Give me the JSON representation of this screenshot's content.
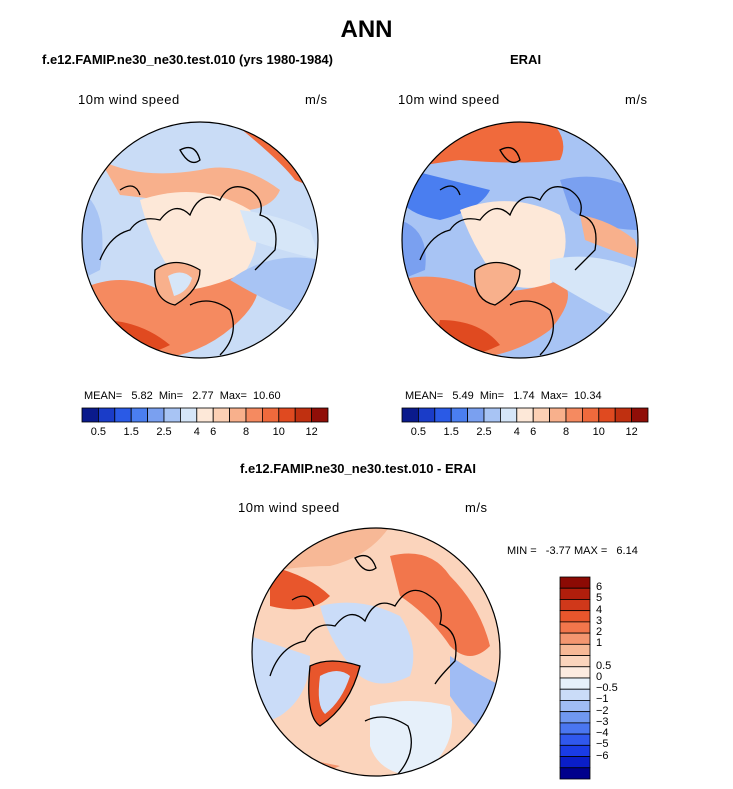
{
  "title": "ANN",
  "panels": {
    "model": {
      "title": "f.e12.FAMIP.ne30_ne30.test.010 (yrs 1980-1984)",
      "variable": "10m wind speed",
      "units": "m/s",
      "stats_text": "MEAN=   5.82  Min=   2.77  Max=  10.60"
    },
    "obs": {
      "title": "ERAI",
      "variable": "10m wind speed",
      "units": "m/s",
      "stats_text": "MEAN=   5.49  Min=   1.74  Max=  10.34"
    },
    "diff": {
      "title": "f.e12.FAMIP.ne30_ne30.test.010 - ERAI",
      "variable": "10m wind speed",
      "units": "m/s",
      "stats_text": "MIN =   -3.77 MAX =   6.14"
    }
  },
  "colorbar_field": {
    "colors": [
      "#0a1a8c",
      "#1a3cc8",
      "#2a5ae6",
      "#4a7ef0",
      "#7aa0f0",
      "#a8c4f4",
      "#d6e6f8",
      "#fde8d8",
      "#fcd0b4",
      "#f8b08c",
      "#f58a60",
      "#f06a3c",
      "#e04a20",
      "#c03010",
      "#900e08"
    ],
    "tick_labels": [
      "0.5",
      "1.5",
      "2.5",
      "4",
      "6",
      "8",
      "10",
      "12"
    ]
  },
  "colorbar_diff": {
    "colors": [
      "#00008c",
      "#0a1ec8",
      "#1a3ce6",
      "#3058ee",
      "#4a76f0",
      "#7098f0",
      "#a0bcf4",
      "#cadcf8",
      "#e6f0fa",
      "#fdebe0",
      "#fbd4bc",
      "#f7b896",
      "#f49670",
      "#f2764c",
      "#e8562c",
      "#d0381a",
      "#b01e0c",
      "#8c0a04"
    ],
    "tick_labels": [
      "6",
      "5",
      "4",
      "3",
      "2",
      "1",
      "0.5",
      "0",
      "−0.5",
      "−1",
      "−2",
      "−3",
      "−4",
      "−5",
      "−6"
    ]
  }
}
